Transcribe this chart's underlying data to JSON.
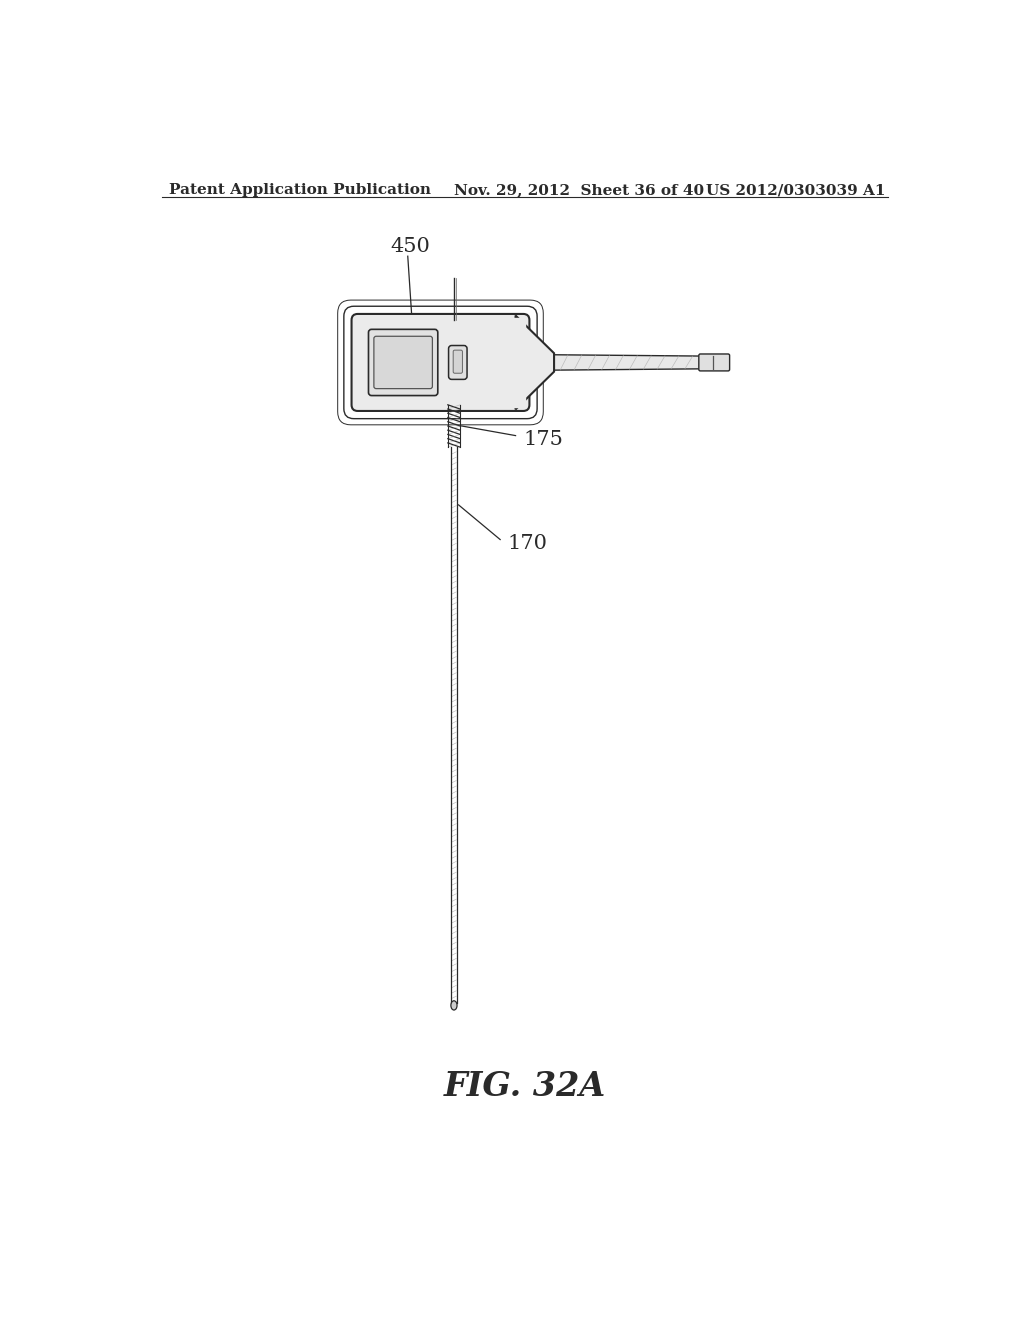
{
  "bg_color": "#ffffff",
  "line_color": "#2a2a2a",
  "header_left": "Patent Application Publication",
  "header_mid": "Nov. 29, 2012  Sheet 36 of 40",
  "header_right": "US 2012/0303039 A1",
  "fig_label": "FIG. 32A",
  "label_450": "450",
  "label_175": "175",
  "label_170": "170",
  "header_fontsize": 11,
  "fig_label_fontsize": 24,
  "annot_fontsize": 15
}
